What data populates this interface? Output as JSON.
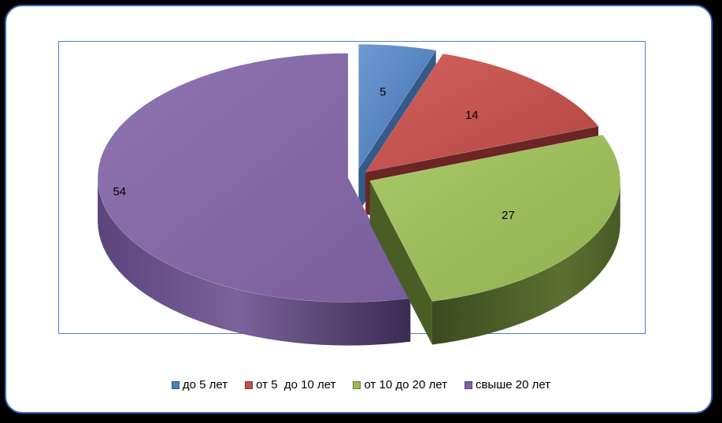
{
  "chart_data": {
    "type": "pie",
    "categories": [
      "до 5 лет",
      "от 5  до 10 лет",
      "от 10 до 20 лет",
      "свыше 20 лет"
    ],
    "values": [
      5,
      14,
      27,
      54
    ],
    "colors": [
      "#4f81bd",
      "#c0504d",
      "#9bbb59",
      "#8064a2"
    ],
    "legend_position": "bottom",
    "style": "3d-exploded"
  }
}
